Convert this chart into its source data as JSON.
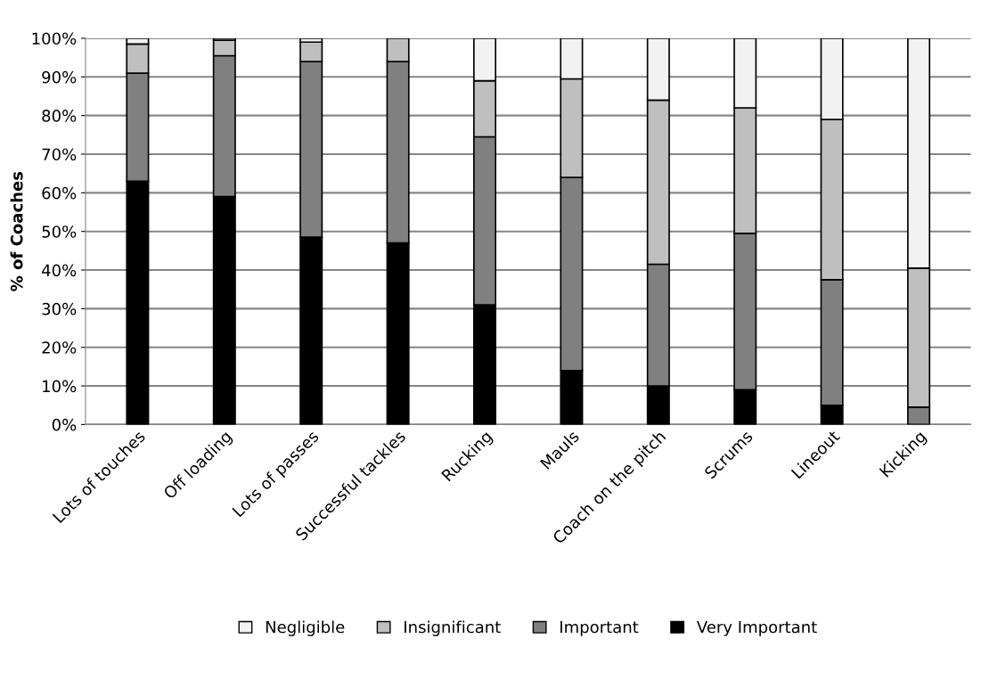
{
  "chart_data": {
    "type": "bar",
    "stacked": true,
    "ylabel": "% of Coaches",
    "categories": [
      "Lots of touches",
      "Off loading",
      "Lots of passes",
      "Successful tackles",
      "Rucking",
      "Mauls",
      "Coach on the pitch",
      "Scrums",
      "Lineout",
      "Kicking"
    ],
    "series": [
      {
        "name": "Very Important",
        "color": "#000000",
        "values": [
          63,
          59,
          48.5,
          47,
          31,
          14,
          10,
          9,
          5,
          0
        ]
      },
      {
        "name": "Important",
        "color": "#808080",
        "values": [
          28,
          36.5,
          45.5,
          47,
          43.5,
          50,
          31.5,
          40.5,
          32.5,
          4.5
        ]
      },
      {
        "name": "Insignificant",
        "color": "#bfbfbf",
        "values": [
          7.5,
          4,
          5,
          6,
          14.5,
          25.5,
          42.5,
          32.5,
          41.5,
          36
        ]
      },
      {
        "name": "Negligible",
        "color": "#f2f2f2",
        "values": [
          1.5,
          0.5,
          1,
          0,
          11,
          10.5,
          16,
          18,
          21,
          59.5
        ]
      }
    ],
    "ylim": [
      0,
      100
    ],
    "yticks": [
      {
        "value": 0,
        "label": "0%"
      },
      {
        "value": 10,
        "label": "10%"
      },
      {
        "value": 20,
        "label": "20%"
      },
      {
        "value": 30,
        "label": "30%"
      },
      {
        "value": 40,
        "label": "40%"
      },
      {
        "value": 50,
        "label": "50%"
      },
      {
        "value": 60,
        "label": "60%"
      },
      {
        "value": 70,
        "label": "70%"
      },
      {
        "value": 80,
        "label": "80%"
      },
      {
        "value": 90,
        "label": "90%"
      },
      {
        "value": 100,
        "label": "100%"
      }
    ],
    "grid": "y",
    "legend": "bottom"
  }
}
